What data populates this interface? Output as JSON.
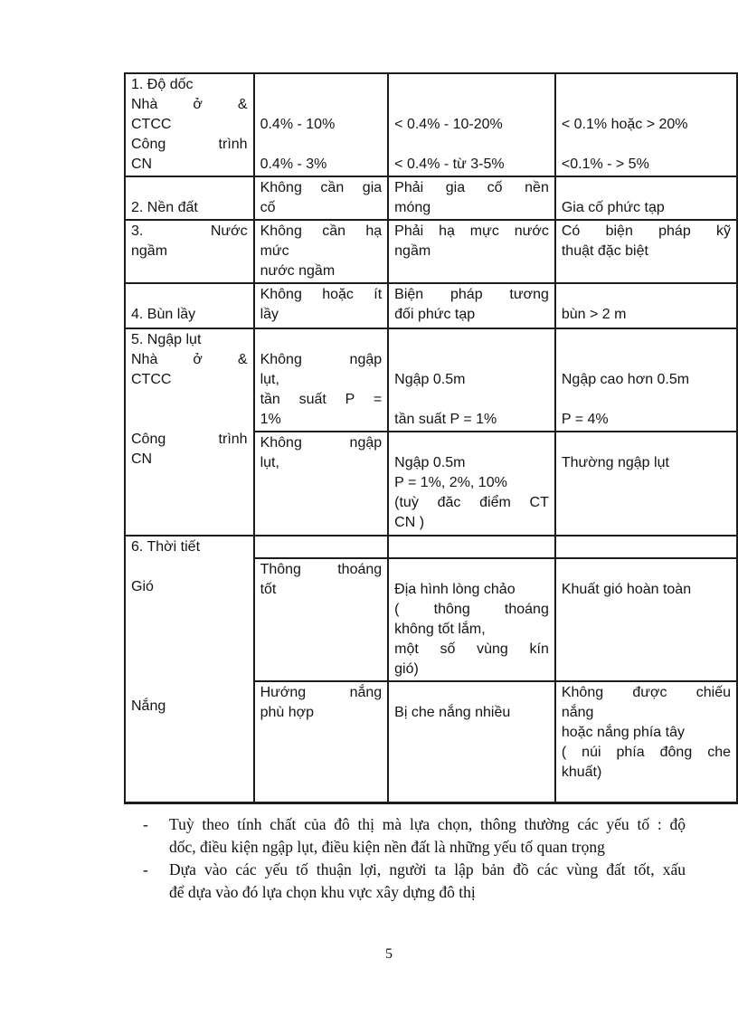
{
  "document": {
    "page_number": "5"
  },
  "table": {
    "border_color": "#1c1c1c",
    "rows": [
      {
        "name": "do-doc",
        "cells": [
          {
            "lines": [
              "1. Độ dốc",
              "Nhà ở &",
              "CTCC",
              "Công trình",
              "CN"
            ],
            "spread": [
              1,
              3
            ]
          },
          {
            "lines": [
              "",
              "",
              "0.4% - 10%",
              "",
              "0.4% - 3%"
            ],
            "spread": []
          },
          {
            "lines": [
              "",
              "",
              "< 0.4% - 10-20%",
              "",
              "< 0.4% - từ 3-5%"
            ],
            "spread": []
          },
          {
            "lines": [
              "",
              "",
              "< 0.1% hoặc > 20%",
              "",
              "<0.1% - > 5%"
            ],
            "spread": []
          }
        ]
      },
      {
        "name": "nen-dat",
        "cells": [
          {
            "lines": [
              "",
              "2. Nền đất"
            ],
            "spread": []
          },
          {
            "lines": [
              "Không cần gia",
              "cố"
            ],
            "spread": [
              0
            ]
          },
          {
            "lines": [
              "Phải gia cố nền",
              "móng"
            ],
            "spread": [
              0
            ]
          },
          {
            "lines": [
              "",
              "Gia cố phức tạp"
            ],
            "spread": []
          }
        ]
      },
      {
        "name": "nuoc-ngam",
        "cells": [
          {
            "lines": [
              "3. Nước",
              "ngầm"
            ],
            "spread": [
              0
            ]
          },
          {
            "lines": [
              "Không cần hạ",
              "mức",
              "nước ngầm"
            ],
            "spread": [
              0
            ]
          },
          {
            "lines": [
              "Phải hạ mực nước",
              "ngầm"
            ],
            "spread": [
              0
            ]
          },
          {
            "lines": [
              "Có biện pháp kỹ",
              "thuật đặc biệt"
            ],
            "spread": [
              0
            ]
          }
        ]
      },
      {
        "name": "bun-lay",
        "cells": [
          {
            "lines": [
              "",
              "4. Bùn lầy"
            ],
            "spread": []
          },
          {
            "lines": [
              "Không hoặc ít",
              "lầy"
            ],
            "spread": [
              0
            ]
          },
          {
            "lines": [
              "Biện pháp tương",
              "đối phức tạp"
            ],
            "spread": [
              0
            ]
          },
          {
            "lines": [
              "",
              "bùn > 2 m"
            ],
            "spread": []
          }
        ]
      },
      {
        "name": "ngap-lut-nha-o-ctcc",
        "cells": [
          {
            "lines": [
              "5. Ngập lụt",
              "Nhà ở &",
              "CTCC",
              "",
              "",
              "Công trình",
              "CN"
            ],
            "spread": [
              1,
              5
            ]
          },
          {
            "lines": [
              "",
              "Không ngập",
              "lụt,",
              "tần suất P =",
              "1%"
            ],
            "spread": [
              1,
              3
            ]
          },
          {
            "lines": [
              "",
              "",
              "Ngập 0.5m",
              "",
              "tần suất P = 1%"
            ],
            "spread": []
          },
          {
            "lines": [
              "",
              "",
              "Ngập cao hơn 0.5m",
              "",
              "P = 4%"
            ],
            "spread": []
          }
        ]
      },
      {
        "name": "ngap-lut-cong-trinh-cn",
        "cells": [
          {
            "lines": [
              "Không ngập",
              "lụt,"
            ],
            "spread": [
              0
            ]
          },
          {
            "lines": [
              "",
              "Ngập 0.5m",
              "P = 1%, 2%, 10%",
              "(tuỳ đăc điểm CT",
              "CN )"
            ],
            "spread": [
              3
            ]
          },
          {
            "lines": [
              "",
              "Thường ngập lụt"
            ],
            "spread": []
          }
        ]
      },
      {
        "name": "thoi-tiet-header",
        "cells": [
          {
            "lines": [
              "6. Thời tiết",
              "",
              "Gió",
              "",
              "",
              "",
              "",
              "",
              "Nắng"
            ],
            "spread": []
          },
          {
            "lines": [],
            "spread": []
          },
          {
            "lines": [],
            "spread": []
          },
          {
            "lines": [],
            "spread": []
          }
        ]
      },
      {
        "name": "gio",
        "cells": [
          {
            "lines": [
              "Thông thoáng",
              "tốt"
            ],
            "spread": [
              0
            ]
          },
          {
            "lines": [
              "",
              "Địa hình lòng chảo",
              "( thông thoáng",
              "không tốt lắm,",
              "một số vùng kín",
              "gió)"
            ],
            "spread": [
              2,
              4
            ]
          },
          {
            "lines": [
              "",
              "Khuất gió hoàn toàn"
            ],
            "spread": []
          }
        ]
      },
      {
        "name": "nang",
        "cells": [
          {
            "lines": [
              "Hướng nắng",
              "phù hợp"
            ],
            "spread": [
              0
            ]
          },
          {
            "lines": [
              "",
              "Bị che nắng nhiều"
            ],
            "spread": []
          },
          {
            "lines": [
              "Không được chiếu",
              "nắng",
              "hoặc nắng phía tây",
              "( núi phía đông che",
              "khuất)"
            ],
            "spread": [
              0,
              3
            ]
          }
        ]
      }
    ]
  },
  "notes": {
    "dash": "-",
    "items": [
      {
        "lines": [
          "Tuỳ theo tính chất của đô thị mà lựa chọn, thông thường các yếu tố : độ",
          "dốc, điều kiện ngập lụt, điều kiện nền đất là những yếu tố quan trọng"
        ],
        "spread": [
          0
        ]
      },
      {
        "lines": [
          "Dựa vào các yếu tố thuận lợi, người ta lập bản đồ các vùng đất tốt, xấu",
          "để dựa vào đó lựa chọn khu vực xây dựng đô thị"
        ],
        "spread": [
          0
        ]
      }
    ]
  }
}
